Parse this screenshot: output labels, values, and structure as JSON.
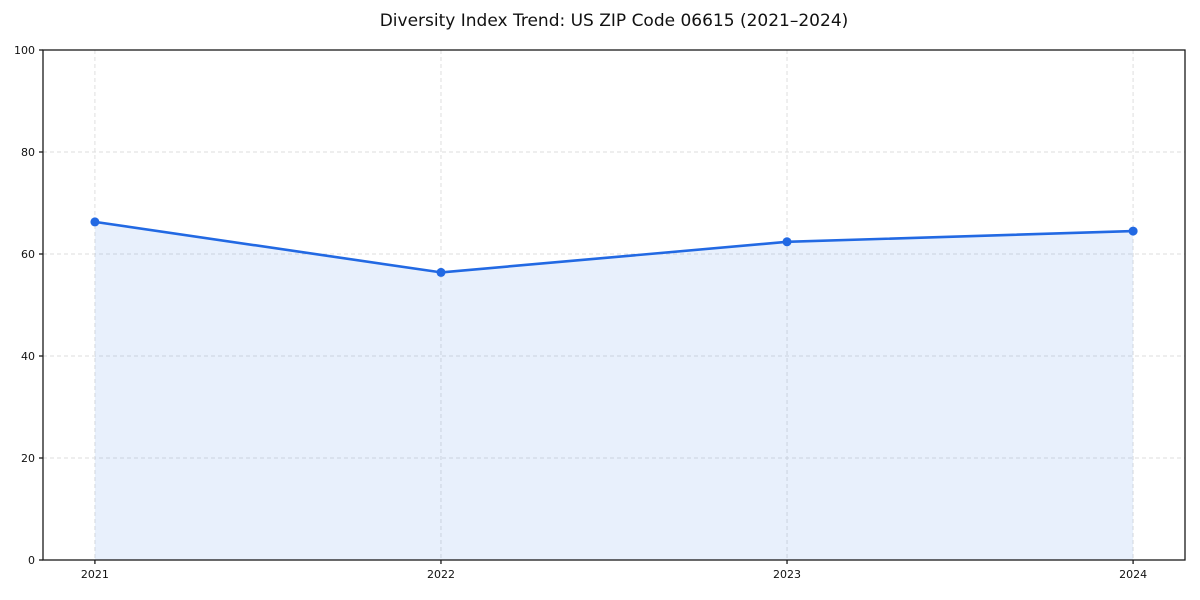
{
  "chart_data": {
    "type": "line",
    "title": "Diversity Index Trend: US ZIP Code 06615 (2021–2024)",
    "x": [
      2021,
      2022,
      2023,
      2024
    ],
    "values": [
      66.3,
      56.4,
      62.4,
      64.5
    ],
    "series_name": "Diversity Index",
    "xlabel": "",
    "ylabel": "",
    "xticks": [
      2021,
      2022,
      2023,
      2024
    ],
    "yticks": [
      0,
      20,
      40,
      60,
      80,
      100
    ],
    "xlim": [
      2020.85,
      2024.15
    ],
    "ylim": [
      0,
      100
    ],
    "grid": true,
    "grid_style": "dashed",
    "legend": "none",
    "area_fill": true,
    "marker": "circle",
    "colors": {
      "line": "#2269e3",
      "marker": "#2269e3",
      "area_fill": "rgba(34,105,227,0.10)",
      "grid": "#dedede",
      "axis": "#1a1a1a",
      "text": "#111111",
      "background": "#ffffff"
    }
  }
}
